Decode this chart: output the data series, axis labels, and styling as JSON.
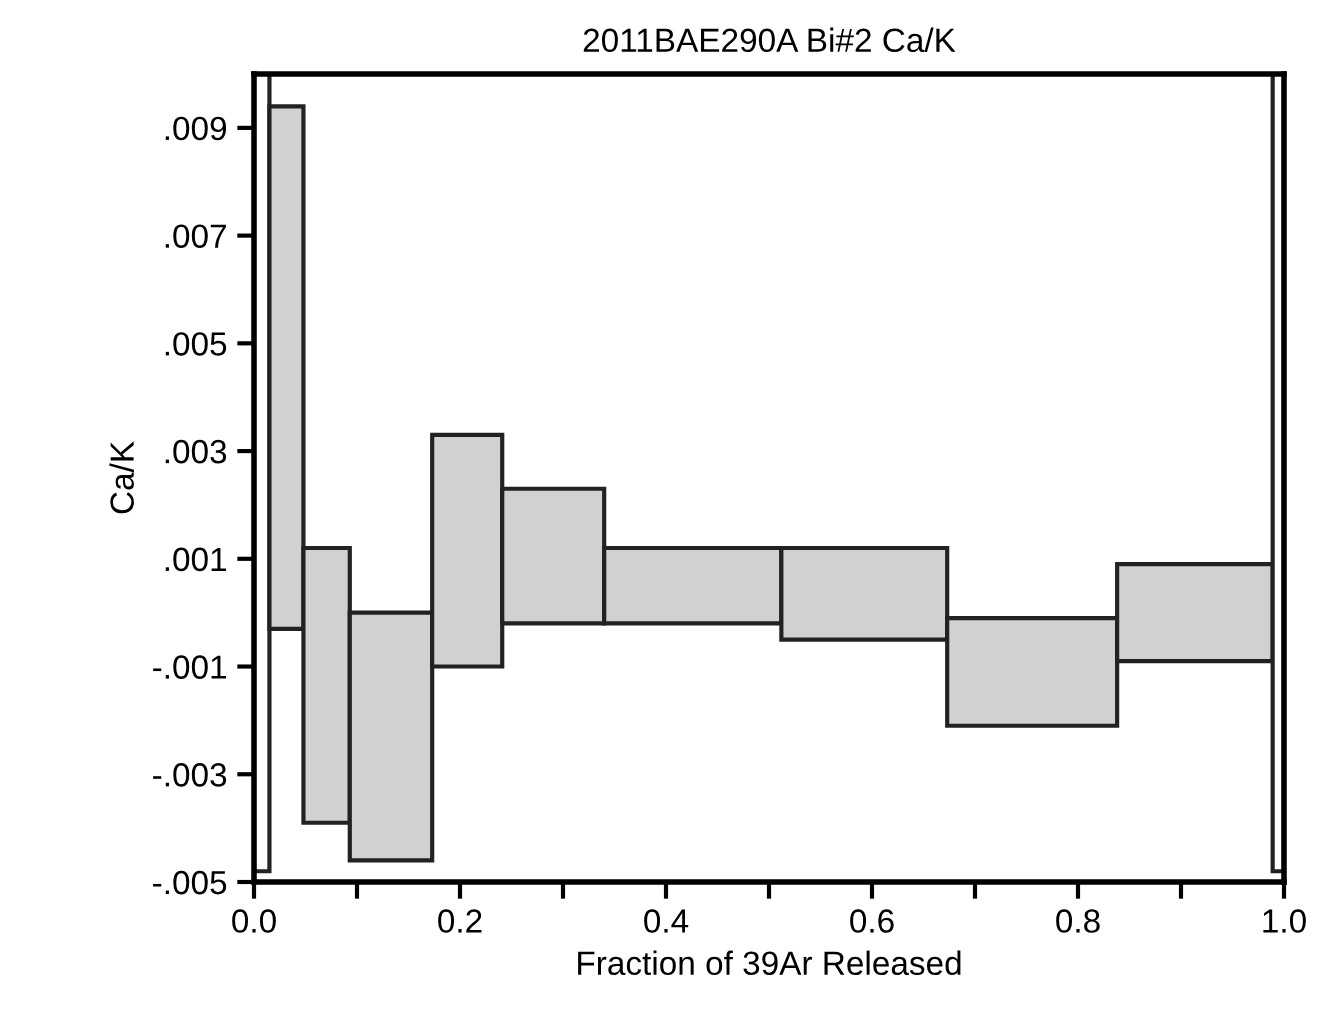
{
  "chart_data": {
    "type": "histogram",
    "title": "2011BAE290A Bi#2 Ca/K",
    "xlabel": "Fraction of 39Ar Released",
    "ylabel": "Ca/K",
    "bins": [
      0.0,
      0.015,
      0.048,
      0.093,
      0.173,
      0.241,
      0.34,
      0.512,
      0.673,
      0.838,
      0.989,
      1.0
    ],
    "values": [
      0.0148,
      0.0097,
      0.0051,
      0.0046,
      0.0043,
      0.0025,
      0.0014,
      0.0017,
      0.002,
      0.0018,
      0.0148
    ],
    "base": [
      -0.0048,
      -0.0003,
      -0.0039,
      -0.0046,
      -0.001,
      -0.0002,
      -0.0002,
      -0.0005,
      -0.0021,
      -0.0009,
      -0.0048
    ],
    "colors": [
      "#ffffff",
      "#d0d1d3",
      "#d0d1d3",
      "#d0d1d3",
      "#d0d1d3",
      "#d0d1d3",
      "#d0d1d3",
      "#d0d1d3",
      "#d0d1d3",
      "#d0d1d3",
      "#ffffff"
    ],
    "xlim": [
      0,
      1
    ],
    "ylim": [
      -0.005,
      0.01
    ],
    "xticks": [
      {
        "value": 0,
        "label": "0.0"
      },
      {
        "value": 0.1,
        "label": null
      },
      {
        "value": 0.2,
        "label": "0.2"
      },
      {
        "value": 0.3,
        "label": null
      },
      {
        "value": 0.4,
        "label": "0.4"
      },
      {
        "value": 0.5,
        "label": null
      },
      {
        "value": 0.6,
        "label": "0.6"
      },
      {
        "value": 0.7,
        "label": null
      },
      {
        "value": 0.8,
        "label": "0.8"
      },
      {
        "value": 0.9,
        "label": null
      },
      {
        "value": 1,
        "label": "1.0"
      }
    ],
    "yticks": [
      {
        "value": -0.005,
        "label": "-.005"
      },
      {
        "value": -0.003,
        "label": "-.003"
      },
      {
        "value": -0.001,
        "label": "-.001"
      },
      {
        "value": 0.001,
        "label": ".001"
      },
      {
        "value": 0.003,
        "label": ".003"
      },
      {
        "value": 0.005,
        "label": ".005"
      },
      {
        "value": 0.007,
        "label": ".007"
      },
      {
        "value": 0.009,
        "label": ".009"
      }
    ],
    "grid": false
  }
}
